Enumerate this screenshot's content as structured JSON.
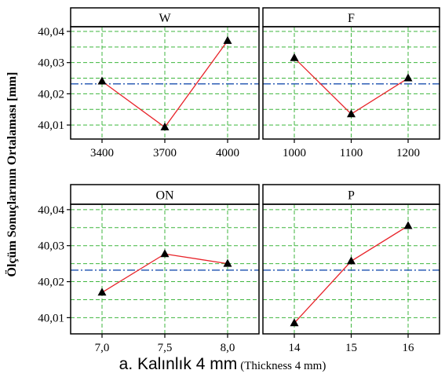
{
  "chart_data": {
    "type": "line",
    "ylabel": "Ölçüm Sonuçlarının Ortalaması [mm]",
    "ylim": [
      40.0055,
      40.0415
    ],
    "yticks": [
      "40,01",
      "40,02",
      "40,03",
      "40,04"
    ],
    "ytick_values": [
      40.01,
      40.02,
      40.03,
      40.04
    ],
    "mean_line": 40.0232,
    "grid": true,
    "colors": {
      "line": "#e8242a",
      "marker": "#000000",
      "mean": "#2f5fb6",
      "grid": "#3fb63f"
    },
    "panels": [
      {
        "title": "W",
        "categories": [
          "3400",
          "3700",
          "4000"
        ],
        "values": [
          40.024,
          40.0093,
          40.037
        ]
      },
      {
        "title": "F",
        "categories": [
          "1000",
          "1100",
          "1200"
        ],
        "values": [
          40.0315,
          40.0135,
          40.025
        ]
      },
      {
        "title": "ON",
        "categories": [
          "7,0",
          "7,5",
          "8,0"
        ],
        "values": [
          40.017,
          40.0277,
          40.025
        ]
      },
      {
        "title": "P",
        "categories": [
          "14",
          "15",
          "16"
        ],
        "values": [
          40.0085,
          40.0257,
          40.0355
        ]
      }
    ]
  },
  "caption": {
    "main": "a. Kalınlık 4 mm",
    "sub": "(Thickness 4 mm)"
  }
}
